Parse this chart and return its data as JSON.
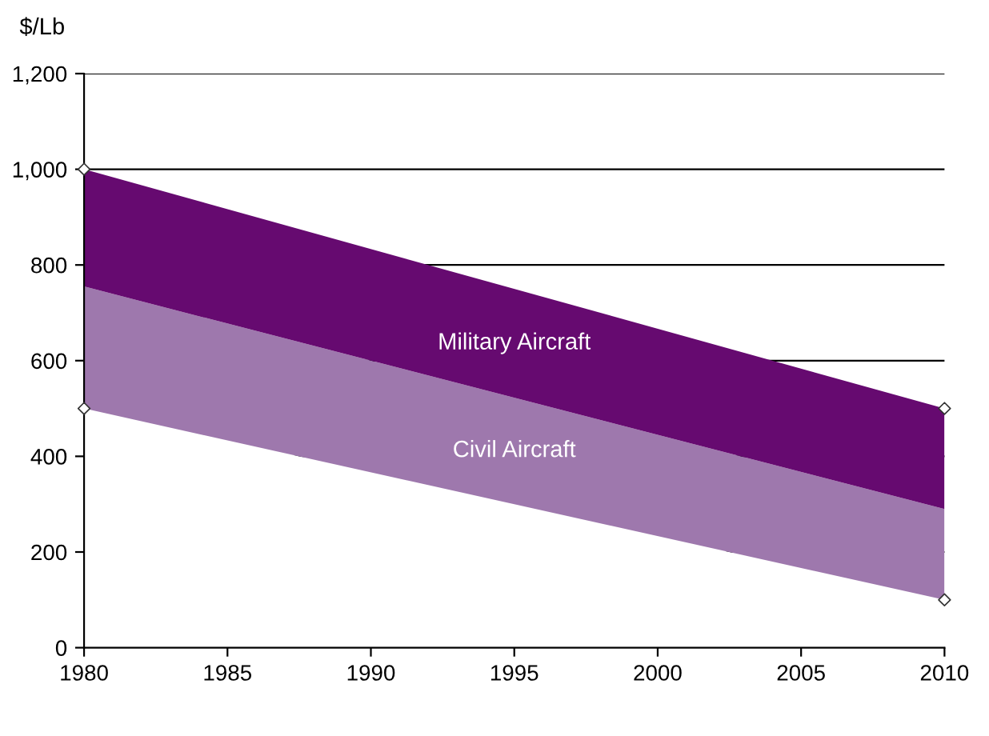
{
  "chart_data": {
    "type": "area",
    "ylabel": "$/Lb",
    "stacked": true,
    "x": [
      1980,
      2010
    ],
    "series": [
      {
        "color": "#ffffff",
        "values": [
          500,
          100
        ]
      },
      {
        "name": "Civil Aircraft",
        "color": "#9e78ad",
        "values": [
          255,
          190
        ]
      },
      {
        "name": "Military Aircraft",
        "color": "#660a70",
        "values": [
          245,
          210
        ]
      },
      {
        "type": "scatter",
        "color": "#ffffff",
        "marker": "diamond",
        "values": [
          1000,
          500
        ]
      },
      {
        "type": "scatter",
        "color": "#ffffff",
        "marker": "diamond",
        "values": [
          500,
          100
        ]
      }
    ],
    "xlim": [
      1980,
      2010
    ],
    "xticks": [
      1980,
      1985,
      1990,
      1995,
      2000,
      2005,
      2010
    ],
    "ylim": [
      0,
      1200
    ],
    "yticks": [
      0,
      {
        "value": 200,
        "label": "200"
      },
      {
        "value": 400,
        "label": "400"
      },
      {
        "value": 600,
        "label": "600"
      },
      {
        "value": 800,
        "label": "800"
      },
      {
        "value": 1000,
        "label": "1,000"
      },
      {
        "value": 1200,
        "label": "1,200"
      }
    ],
    "grid": "y",
    "legend": false
  }
}
